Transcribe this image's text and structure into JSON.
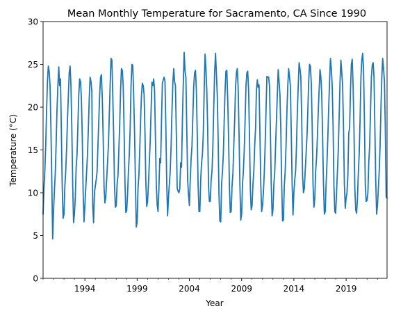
{
  "chart_data": {
    "type": "line",
    "title": "Mean Monthly Temperature for Sacramento, CA Since 1990",
    "xlabel": "Year",
    "ylabel": "Temperature (°C)",
    "x_start": "1990-01",
    "x_end": "2022-12",
    "xlim": [
      "1990-01",
      "2022-12"
    ],
    "ylim": [
      0,
      30
    ],
    "x_ticks": [
      "1994",
      "1999",
      "2004",
      "2009",
      "2014",
      "2019"
    ],
    "y_ticks": [
      0,
      5,
      10,
      15,
      20,
      25,
      30
    ],
    "grid": false,
    "legend": "none",
    "series": [
      {
        "color": "#1f77b4",
        "values": [
          7.5,
          10.5,
          12.5,
          15.5,
          19.5,
          23.0,
          24.8,
          24.2,
          22.5,
          17.5,
          11.5,
          4.6,
          7.8,
          10.2,
          12.3,
          15.8,
          19.8,
          22.5,
          24.7,
          22.5,
          23.3,
          17.0,
          10.6,
          7.0,
          7.5,
          10.8,
          12.5,
          15.2,
          18.5,
          21.3,
          24.0,
          24.8,
          22.5,
          17.6,
          11.0,
          6.5,
          7.5,
          9.5,
          13.0,
          14.5,
          18.0,
          21.5,
          23.3,
          23.0,
          21.0,
          16.5,
          10.0,
          6.6,
          8.5,
          10.5,
          12.5,
          14.5,
          17.5,
          21.0,
          23.5,
          23.0,
          21.8,
          8.5,
          6.5,
          10.0,
          10.8,
          11.5,
          12.5,
          15.5,
          18.5,
          21.5,
          23.5,
          23.8,
          21.0,
          16.5,
          10.7,
          8.8,
          9.5,
          11.5,
          13.5,
          15.5,
          19.0,
          22.5,
          25.7,
          25.5,
          21.5,
          17.0,
          11.0,
          8.3,
          8.5,
          11.0,
          12.0,
          15.0,
          18.0,
          22.0,
          24.5,
          24.3,
          22.5,
          17.5,
          11.3,
          7.7,
          7.9,
          9.8,
          12.5,
          14.5,
          17.5,
          22.5,
          25.0,
          24.9,
          21.5,
          17.2,
          11.5,
          6.0,
          6.5,
          10.5,
          12.0,
          15.0,
          18.5,
          21.5,
          22.8,
          22.5,
          21.5,
          17.0,
          11.3,
          8.4,
          9.0,
          11.0,
          13.5,
          16.0,
          19.5,
          22.9,
          22.5,
          23.3,
          22.0,
          16.5,
          11.0,
          8.6,
          7.8,
          10.5,
          14.0,
          13.5,
          18.5,
          22.8,
          23.2,
          23.5,
          23.0,
          17.5,
          11.0,
          7.3,
          9.5,
          11.0,
          12.5,
          15.5,
          19.5,
          22.8,
          24.5,
          23.0,
          22.5,
          17.0,
          10.5,
          10.2,
          10.0,
          10.5,
          13.5,
          13.0,
          18.5,
          22.8,
          26.4,
          24.2,
          23.5,
          17.5,
          11.5,
          9.8,
          8.5,
          11.5,
          14.0,
          15.5,
          19.0,
          22.5,
          24.0,
          24.3,
          22.0,
          17.0,
          11.0,
          7.8,
          7.8,
          11.5,
          13.5,
          14.5,
          17.0,
          22.0,
          26.2,
          24.5,
          22.0,
          17.5,
          10.8,
          9.0,
          9.0,
          11.5,
          12.5,
          15.5,
          20.0,
          24.0,
          26.3,
          24.0,
          21.5,
          16.5,
          9.7,
          6.7,
          6.6,
          11.0,
          12.5,
          14.5,
          18.5,
          22.0,
          24.2,
          24.3,
          21.0,
          16.5,
          10.6,
          7.7,
          7.8,
          10.8,
          12.3,
          15.5,
          18.5,
          22.3,
          24.0,
          24.5,
          22.3,
          17.0,
          11.0,
          6.8,
          7.5,
          11.0,
          12.5,
          15.0,
          18.5,
          22.5,
          24.0,
          24.2,
          22.0,
          16.8,
          10.5,
          8.0,
          8.5,
          11.0,
          12.5,
          15.5,
          17.5,
          22.0,
          23.2,
          22.3,
          22.6,
          17.0,
          11.0,
          7.8,
          8.5,
          10.0,
          12.3,
          15.5,
          19.5,
          23.6,
          23.5,
          23.5,
          22.5,
          17.5,
          11.0,
          7.3,
          8.0,
          11.0,
          12.3,
          15.5,
          18.5,
          21.5,
          24.4,
          23.0,
          21.5,
          17.3,
          11.0,
          6.7,
          6.8,
          10.8,
          12.5,
          15.5,
          19.5,
          22.5,
          24.5,
          23.5,
          22.5,
          17.0,
          11.0,
          7.4,
          10.0,
          11.5,
          12.5,
          15.5,
          19.5,
          22.5,
          25.2,
          24.5,
          23.5,
          18.5,
          12.0,
          10.0,
          10.5,
          12.5,
          14.5,
          16.5,
          19.5,
          23.0,
          25.0,
          24.8,
          22.8,
          18.0,
          11.0,
          8.3,
          9.3,
          12.5,
          14.0,
          16.5,
          19.5,
          22.0,
          24.4,
          23.5,
          21.5,
          16.5,
          11.0,
          7.5,
          7.8,
          11.0,
          13.5,
          16.5,
          20.0,
          23.0,
          25.7,
          24.5,
          22.5,
          18.0,
          10.8,
          7.8,
          7.6,
          10.0,
          12.5,
          15.0,
          19.0,
          23.0,
          25.5,
          24.0,
          22.5,
          17.5,
          11.0,
          8.2,
          9.4,
          10.0,
          12.0,
          17.0,
          17.5,
          22.0,
          25.0,
          25.6,
          22.5,
          17.5,
          10.5,
          8.0,
          7.6,
          9.3,
          12.3,
          14.5,
          18.5,
          23.5,
          25.5,
          26.3,
          24.5,
          18.5,
          11.0,
          9.0,
          9.1,
          10.0,
          13.5,
          15.5,
          19.5,
          23.5,
          24.9,
          25.2,
          23.5,
          17.5,
          11.5,
          7.5,
          8.5,
          10.5,
          12.5,
          15.5,
          20.0,
          23.5,
          25.7,
          24.5,
          23.0,
          17.5,
          9.5,
          9.4
        ]
      }
    ]
  }
}
